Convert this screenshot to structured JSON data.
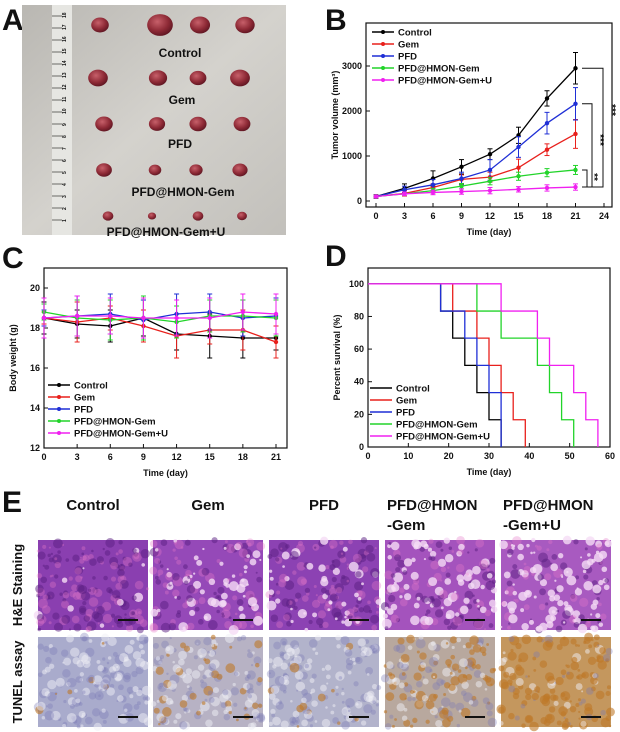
{
  "panels": {
    "a": {
      "letter": "A",
      "group_labels": [
        "Control",
        "Gem",
        "PFD",
        "PFD@HMON-Gem",
        "PFD@HMON-Gem+U"
      ],
      "ruler_numbers": [
        "1",
        "2",
        "3",
        "4",
        "5",
        "6",
        "7",
        "8",
        "9",
        "10",
        "11",
        "12",
        "13",
        "14",
        "15",
        "16",
        "17",
        "18"
      ]
    },
    "b": {
      "letter": "B"
    },
    "c": {
      "letter": "C"
    },
    "d": {
      "letter": "D"
    },
    "e": {
      "letter": "E",
      "columns": [
        "Control",
        "Gem",
        "PFD",
        "PFD@HMON\n-Gem",
        "PFD@HMON\n-Gem+U"
      ],
      "rows": [
        "H&E Staining",
        "TUNEL assay"
      ]
    }
  },
  "colors": {
    "Control": "#000000",
    "Gem": "#e8201c",
    "PFD": "#1f2fd6",
    "PFD@HMON-Gem": "#22d42a",
    "PFD@HMON-Gem+U": "#f020f0"
  },
  "chart_data": [
    {
      "id": "B",
      "type": "line",
      "title": "",
      "xlabel": "Time (day)",
      "ylabel": "Tumor volume (mm³)",
      "xlim": [
        0,
        24
      ],
      "ylim": [
        0,
        3400
      ],
      "xticks": [
        0,
        3,
        6,
        9,
        12,
        15,
        18,
        21,
        24
      ],
      "yticks": [
        0,
        1000,
        2000,
        3000
      ],
      "legend": "top-left",
      "x": [
        0,
        3,
        6,
        9,
        12,
        15,
        18,
        21
      ],
      "series": [
        {
          "name": "Control",
          "values": [
            100,
            280,
            500,
            760,
            1040,
            1460,
            2280,
            2950
          ],
          "err": [
            40,
            100,
            170,
            160,
            120,
            180,
            170,
            350
          ]
        },
        {
          "name": "Gem",
          "values": [
            100,
            170,
            300,
            480,
            530,
            740,
            1140,
            1490
          ],
          "err": [
            30,
            60,
            80,
            100,
            110,
            190,
            130,
            320
          ]
        },
        {
          "name": "PFD",
          "values": [
            100,
            250,
            360,
            500,
            690,
            1200,
            1730,
            2160
          ],
          "err": [
            30,
            80,
            120,
            140,
            230,
            230,
            240,
            360
          ]
        },
        {
          "name": "PFD@HMON-Gem",
          "values": [
            100,
            160,
            230,
            330,
            440,
            550,
            630,
            690
          ],
          "err": [
            30,
            40,
            50,
            60,
            80,
            90,
            90,
            100
          ]
        },
        {
          "name": "PFD@HMON-Gem+U",
          "values": [
            100,
            160,
            190,
            210,
            230,
            260,
            290,
            310
          ],
          "err": [
            30,
            40,
            50,
            60,
            70,
            60,
            70,
            70
          ]
        }
      ],
      "annotations": [
        "***",
        "***",
        "**"
      ]
    },
    {
      "id": "C",
      "type": "line",
      "title": "",
      "xlabel": "Time (day)",
      "ylabel": "Body weight (g)",
      "xlim": [
        0,
        21
      ],
      "ylim": [
        12,
        21
      ],
      "xticks": [
        0,
        3,
        6,
        9,
        12,
        15,
        18,
        21
      ],
      "yticks": [
        12,
        14,
        16,
        18,
        20
      ],
      "legend": "bottom-left",
      "x": [
        0,
        3,
        6,
        9,
        12,
        15,
        18,
        21
      ],
      "series": [
        {
          "name": "Control",
          "values": [
            18.5,
            18.2,
            18.1,
            18.5,
            17.7,
            17.6,
            17.5,
            17.5
          ],
          "err": [
            0.8,
            0.7,
            0.8,
            0.9,
            0.8,
            1.1,
            1.0,
            0.6
          ]
        },
        {
          "name": "Gem",
          "values": [
            18.5,
            18.3,
            18.5,
            18.1,
            17.6,
            17.9,
            17.9,
            17.3
          ],
          "err": [
            0.3,
            1.0,
            0.6,
            0.8,
            1.1,
            0.7,
            1.0,
            0.8
          ]
        },
        {
          "name": "PFD",
          "values": [
            18.5,
            18.6,
            18.7,
            18.4,
            18.7,
            18.8,
            18.5,
            18.6
          ],
          "err": [
            0.4,
            1.0,
            1.0,
            1.0,
            1.0,
            0.9,
            0.9,
            0.9
          ]
        },
        {
          "name": "PFD@HMON-Gem",
          "values": [
            18.8,
            18.5,
            18.4,
            18.5,
            18.3,
            18.6,
            18.6,
            18.5
          ],
          "err": [
            0.4,
            0.9,
            1.0,
            1.1,
            0.8,
            0.8,
            0.8,
            0.9
          ]
        },
        {
          "name": "PFD@HMON-Gem+U",
          "values": [
            18.5,
            18.6,
            18.6,
            18.5,
            18.5,
            18.5,
            18.8,
            18.7
          ],
          "err": [
            1.0,
            1.0,
            0.9,
            1.0,
            0.9,
            1.0,
            0.9,
            1.0
          ]
        }
      ]
    },
    {
      "id": "D",
      "type": "line",
      "step": true,
      "title": "",
      "xlabel": "Time (day)",
      "ylabel": "Percent survival (%)",
      "xlim": [
        0,
        60
      ],
      "ylim": [
        0,
        110
      ],
      "xticks": [
        0,
        10,
        20,
        30,
        40,
        50,
        60
      ],
      "yticks": [
        0,
        20,
        40,
        60,
        80,
        100
      ],
      "legend": "bottom-left",
      "series": [
        {
          "name": "Control",
          "x": [
            0,
            18,
            21,
            24,
            27,
            30,
            33
          ],
          "values": [
            100,
            83.3,
            66.7,
            50,
            33.3,
            16.7,
            0
          ]
        },
        {
          "name": "Gem",
          "x": [
            0,
            21,
            27,
            30,
            33,
            36,
            39
          ],
          "values": [
            100,
            83.3,
            66.7,
            50,
            33.3,
            16.7,
            0
          ]
        },
        {
          "name": "PFD",
          "x": [
            0,
            18,
            24,
            27,
            30,
            33
          ],
          "values": [
            100,
            83.3,
            66.7,
            50,
            33.3,
            0
          ]
        },
        {
          "name": "PFD@HMON-Gem",
          "x": [
            0,
            27,
            33,
            42,
            45,
            48,
            51
          ],
          "values": [
            100,
            83.3,
            66.7,
            50,
            33.3,
            16.7,
            0
          ]
        },
        {
          "name": "PFD@HMON-Gem+U",
          "x": [
            0,
            33,
            42,
            45,
            51,
            54,
            57
          ],
          "values": [
            100,
            83.3,
            66.7,
            50,
            33.3,
            16.7,
            0
          ]
        }
      ]
    }
  ]
}
